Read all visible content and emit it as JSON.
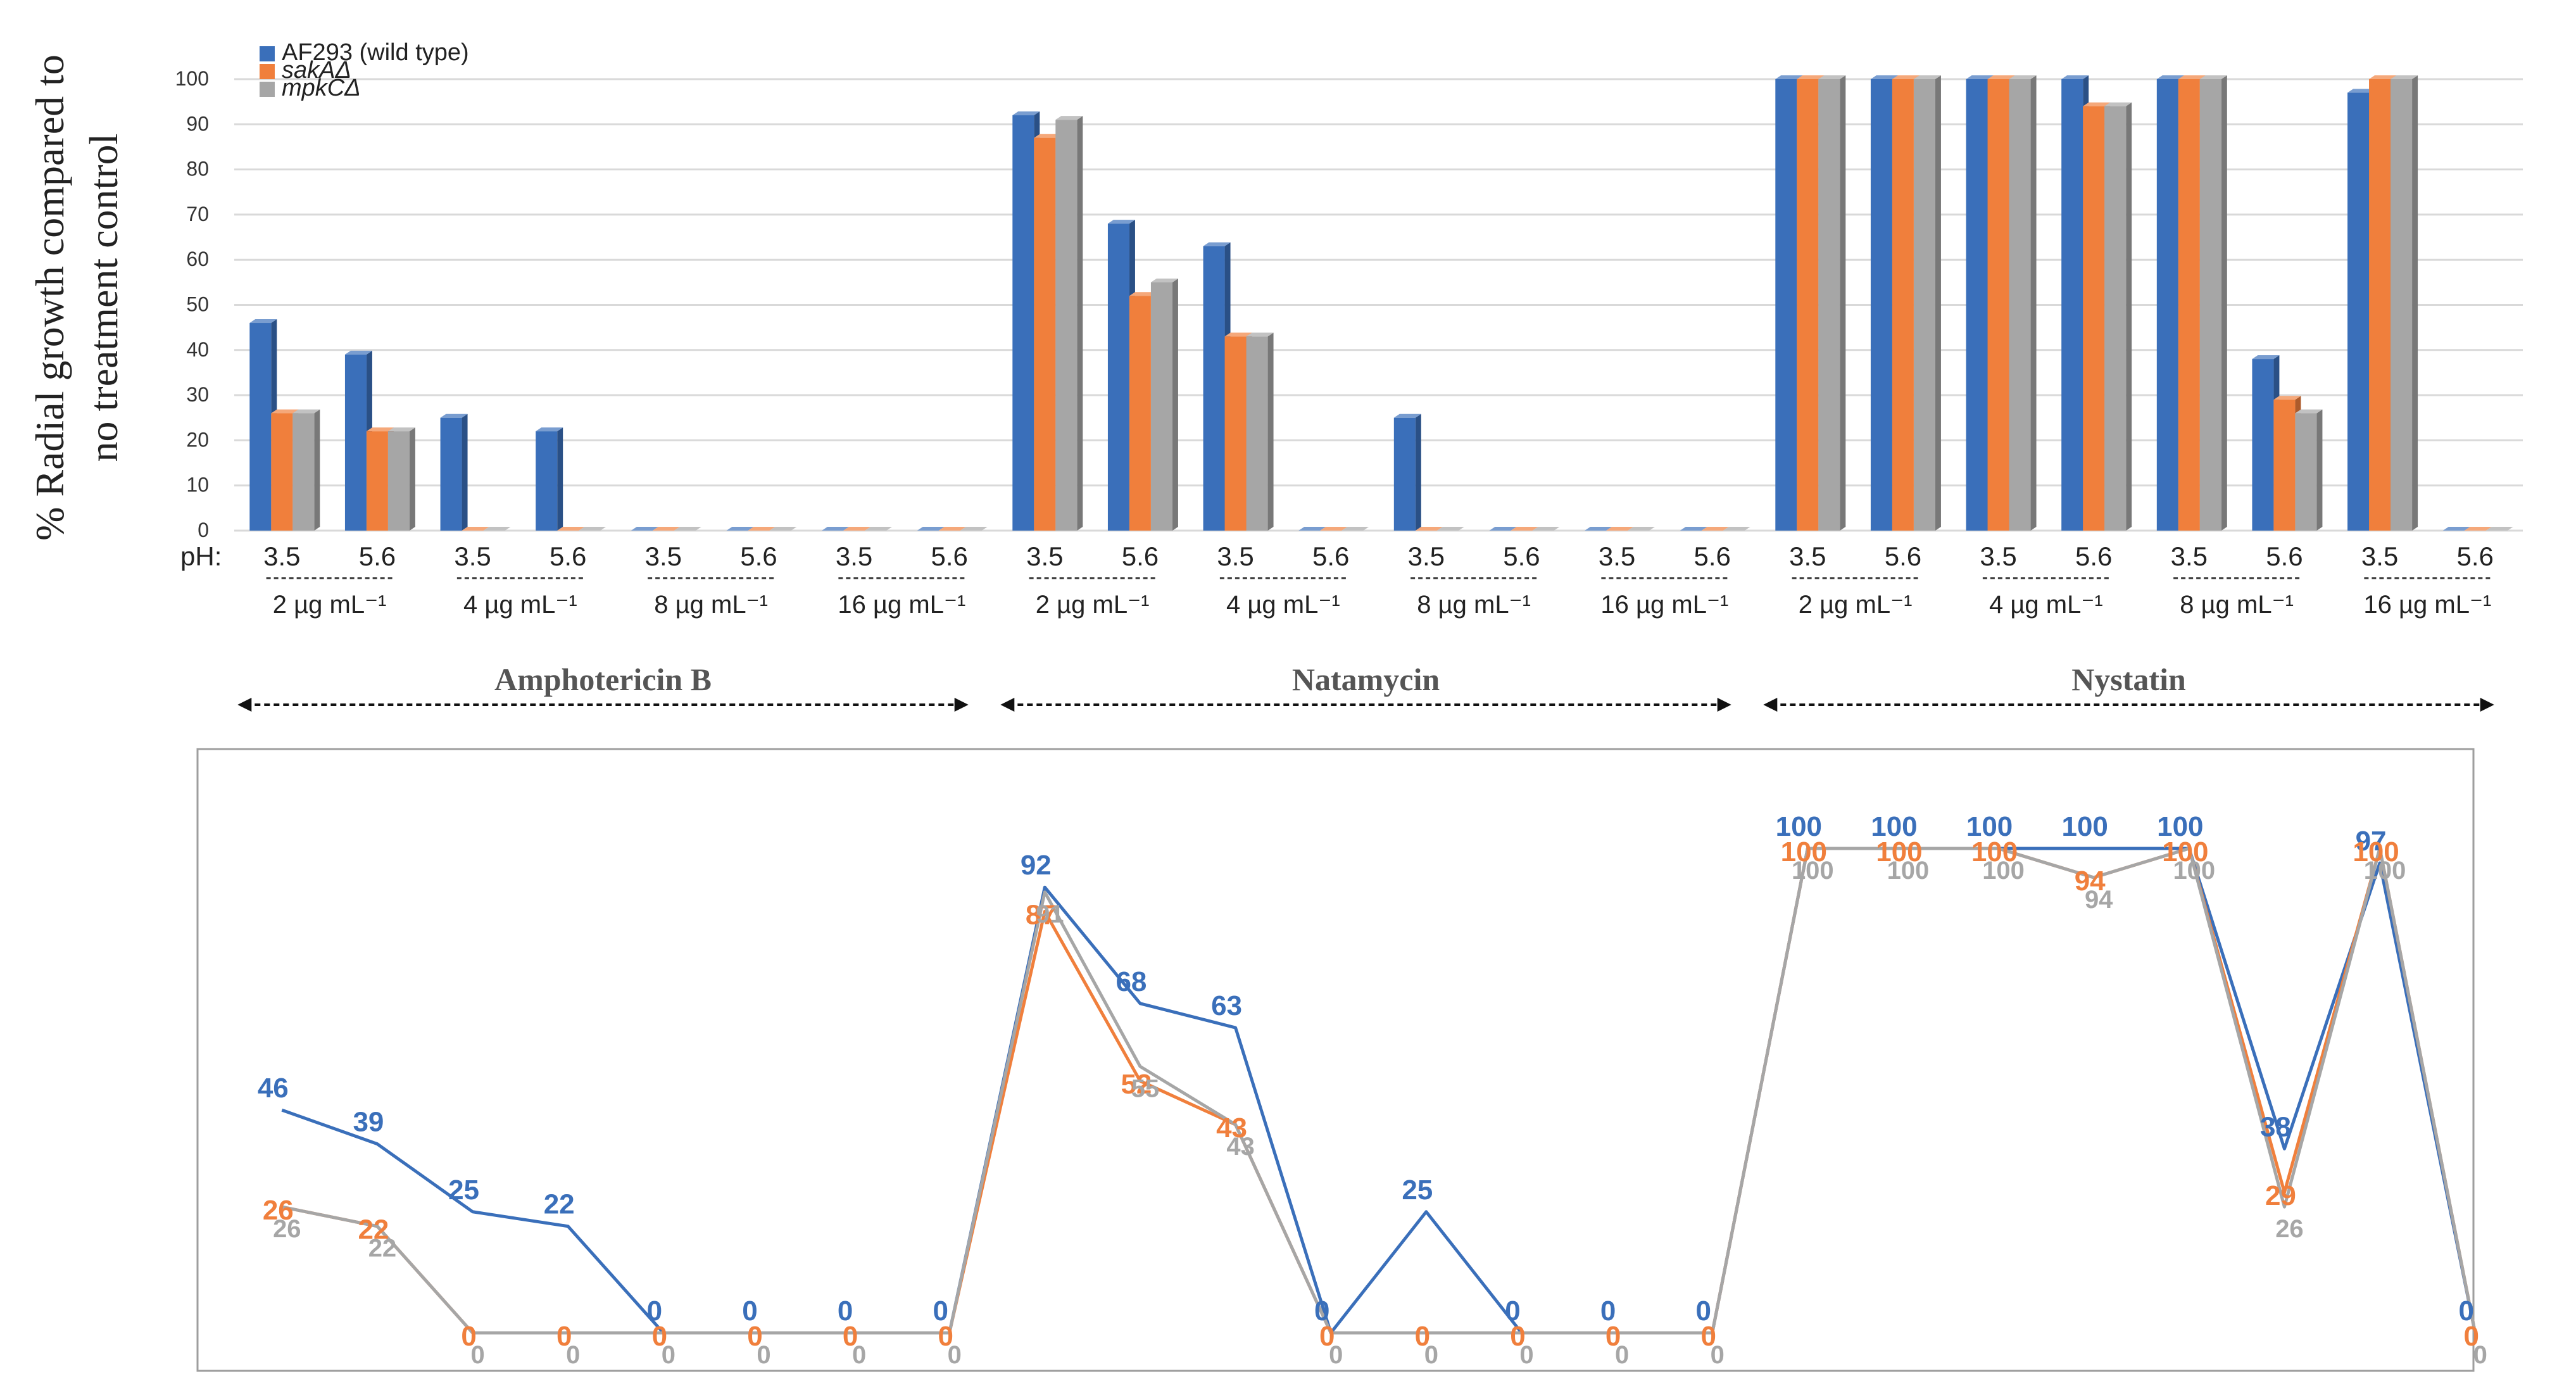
{
  "chart_data": [
    {
      "type": "bar",
      "style": "3d-grouped",
      "ylabel_line1": "% Radial growth compared to",
      "ylabel_line2": "no treatment control",
      "ylim": [
        0,
        100
      ],
      "yticks": [
        "0",
        "10",
        "20",
        "30",
        "40",
        "50",
        "60",
        "70",
        "80",
        "90",
        "100"
      ],
      "grid": true,
      "legend_position": "top-left",
      "ph_prefix": "pH:",
      "ph_values": [
        "3.5",
        "5.6",
        "3.5",
        "5.6",
        "3.5",
        "5.6",
        "3.5",
        "5.6",
        "3.5",
        "5.6",
        "3.5",
        "5.6",
        "3.5",
        "5.6",
        "3.5",
        "5.6",
        "3.5",
        "5.6",
        "3.5",
        "5.6",
        "3.5",
        "5.6",
        "3.5",
        "5.6"
      ],
      "concentrations": [
        "2 µg mL⁻¹",
        "4 µg mL⁻¹",
        "8 µg mL⁻¹",
        "16 µg mL⁻¹",
        "2 µg mL⁻¹",
        "4 µg mL⁻¹",
        "8 µg mL⁻¹",
        "16 µg mL⁻¹",
        "2 µg mL⁻¹",
        "4 µg mL⁻¹",
        "8 µg mL⁻¹",
        "16 µg mL⁻¹"
      ],
      "drugs": [
        "Amphotericin B",
        "Natamycin",
        "Nystatin"
      ],
      "series": [
        {
          "name": "AF293 (wild type)",
          "color": "#3a6fba",
          "values": [
            46,
            39,
            25,
            22,
            0,
            0,
            0,
            0,
            92,
            68,
            63,
            0,
            25,
            0,
            0,
            0,
            100,
            100,
            100,
            100,
            100,
            38,
            97,
            0
          ]
        },
        {
          "name": "sakAΔ",
          "color": "#f07f3c",
          "values": [
            26,
            22,
            0,
            0,
            0,
            0,
            0,
            0,
            87,
            52,
            43,
            0,
            0,
            0,
            0,
            0,
            100,
            100,
            100,
            94,
            100,
            29,
            100,
            0
          ]
        },
        {
          "name": "mpkCΔ",
          "color": "#a6a6a6",
          "values": [
            26,
            22,
            0,
            0,
            0,
            0,
            0,
            0,
            91,
            55,
            43,
            0,
            0,
            0,
            0,
            0,
            100,
            100,
            100,
            94,
            100,
            26,
            100,
            0
          ]
        }
      ]
    },
    {
      "type": "line",
      "data_labels": true,
      "series": [
        {
          "name": "AF293 (wild type)",
          "color": "#3a6fba",
          "values": [
            46,
            39,
            25,
            22,
            0,
            0,
            0,
            0,
            92,
            68,
            63,
            0,
            25,
            0,
            0,
            0,
            100,
            100,
            100,
            100,
            100,
            38,
            97,
            0
          ]
        },
        {
          "name": "sakAΔ",
          "color": "#f07f3c",
          "values": [
            26,
            22,
            0,
            0,
            0,
            0,
            0,
            0,
            87,
            52,
            43,
            0,
            0,
            0,
            0,
            0,
            100,
            100,
            100,
            94,
            100,
            29,
            100,
            0
          ]
        },
        {
          "name": "mpkCΔ",
          "color": "#a6a6a6",
          "values": [
            26,
            22,
            0,
            0,
            0,
            0,
            0,
            0,
            91,
            55,
            43,
            0,
            0,
            0,
            0,
            0,
            100,
            100,
            100,
            94,
            100,
            26,
            100,
            0
          ]
        }
      ]
    }
  ]
}
